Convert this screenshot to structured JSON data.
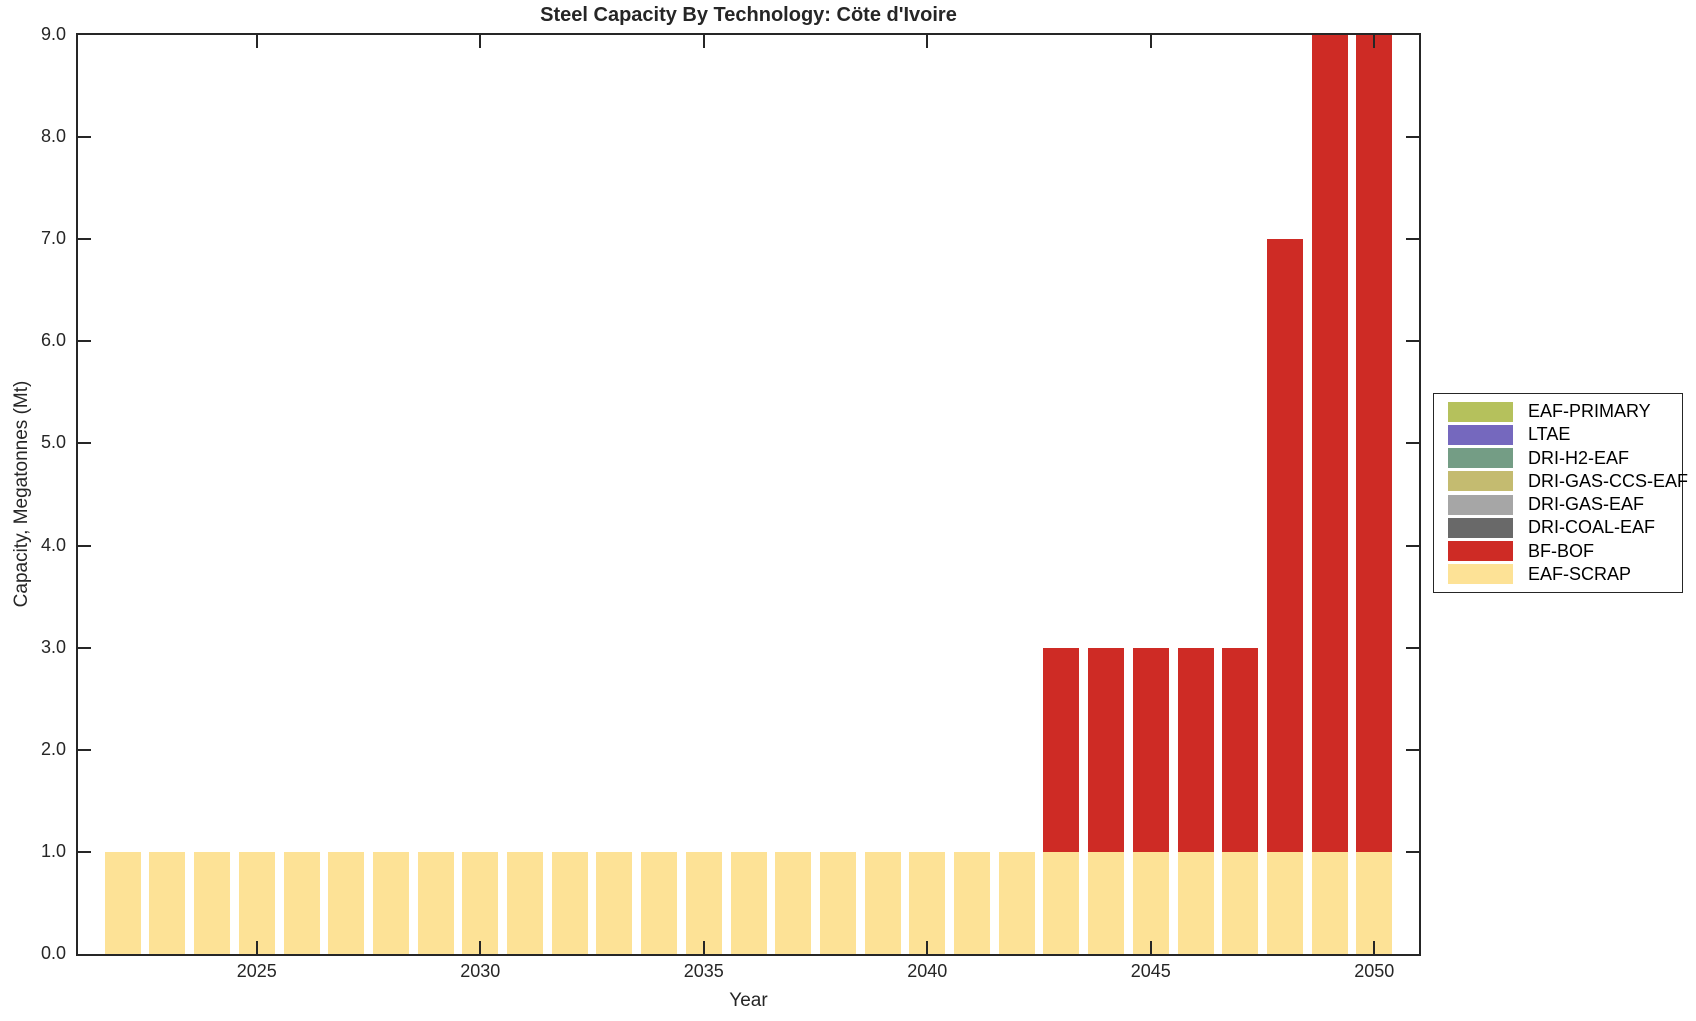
{
  "chart_data": {
    "type": "bar",
    "stacked": true,
    "title": "Steel Capacity By Technology: Cöte d'Ivoire",
    "xlabel": "Year",
    "ylabel": "Capacity, Megatonnes (Mt)",
    "x": [
      2022,
      2023,
      2024,
      2025,
      2026,
      2027,
      2028,
      2029,
      2030,
      2031,
      2032,
      2033,
      2034,
      2035,
      2036,
      2037,
      2038,
      2039,
      2040,
      2041,
      2042,
      2043,
      2044,
      2045,
      2046,
      2047,
      2048,
      2049,
      2050
    ],
    "series": [
      {
        "name": "EAF-SCRAP",
        "color": "#fde296",
        "values": [
          1,
          1,
          1,
          1,
          1,
          1,
          1,
          1,
          1,
          1,
          1,
          1,
          1,
          1,
          1,
          1,
          1,
          1,
          1,
          1,
          1,
          1,
          1,
          1,
          1,
          1,
          1,
          1,
          1
        ]
      },
      {
        "name": "BF-BOF",
        "color": "#ce2b25",
        "values": [
          0,
          0,
          0,
          0,
          0,
          0,
          0,
          0,
          0,
          0,
          0,
          0,
          0,
          0,
          0,
          0,
          0,
          0,
          0,
          0,
          0,
          2,
          2,
          2,
          2,
          2,
          6,
          8,
          8
        ]
      }
    ],
    "totals_note": "stacked totals: 1.0 for 2022-2042, 3.0 for 2043-2047, 7.0 for 2048, 9.0 for 2049-2050",
    "xlim": [
      2021,
      2051
    ],
    "ylim": [
      0,
      9
    ],
    "bar_width_fraction": 0.8,
    "grid": false,
    "xticks": [
      2025,
      2030,
      2035,
      2040,
      2045,
      2050
    ],
    "xtick_labels": [
      "2025",
      "2030",
      "2035",
      "2040",
      "2045",
      "2050"
    ],
    "yticks": [
      0,
      1,
      2,
      3,
      4,
      5,
      6,
      7,
      8,
      9
    ],
    "ytick_labels": [
      "0.0",
      "1.0",
      "2.0",
      "3.0",
      "4.0",
      "5.0",
      "6.0",
      "7.0",
      "8.0",
      "9.0"
    ],
    "legend_position": "outside-right",
    "legend": [
      {
        "label": "EAF-PRIMARY",
        "color": "#b5c15c"
      },
      {
        "label": "LTAE",
        "color": "#7568be"
      },
      {
        "label": "DRI-H2-EAF",
        "color": "#749d85"
      },
      {
        "label": "DRI-GAS-CCS-EAF",
        "color": "#c4bb70"
      },
      {
        "label": "DRI-GAS-EAF",
        "color": "#a6a6a6"
      },
      {
        "label": "DRI-COAL-EAF",
        "color": "#696969"
      },
      {
        "label": "BF-BOF",
        "color": "#ce2b25"
      },
      {
        "label": "EAF-SCRAP",
        "color": "#fde296"
      }
    ],
    "colors": {
      "axis": "#262626",
      "background": "#ffffff"
    }
  }
}
